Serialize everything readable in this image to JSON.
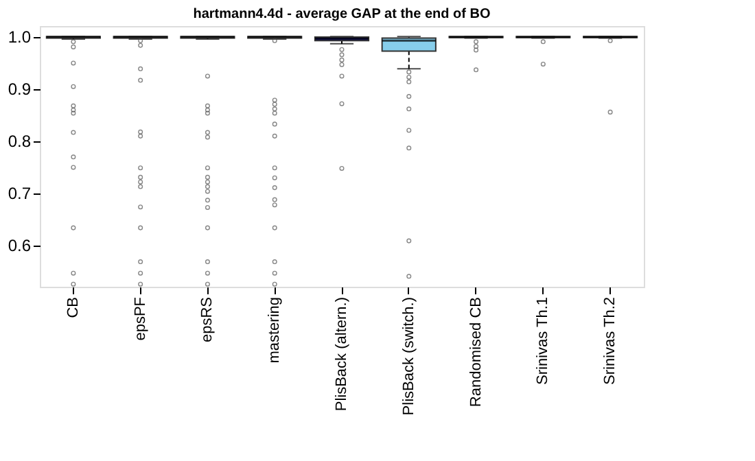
{
  "chart_data": {
    "type": "box",
    "title": "hartmann4.4d - average GAP at the end of BO",
    "categories": [
      "CB",
      "epsPF",
      "epsRS",
      "mastering",
      "PlisBack (altern.)",
      "PlisBack (switch.)",
      "Randomised CB",
      "Srinivas Th.1",
      "Srinivas Th.2"
    ],
    "colors": [
      "#ffffff",
      "#ffffff",
      "#ffffff",
      "#ffffff",
      "#191970",
      "#87ceeb",
      "#ffffff",
      "#ffffff",
      "#ffffff"
    ],
    "boxes": [
      {
        "low": 0.995,
        "q1": 0.997,
        "median": 0.999,
        "q3": 1.0,
        "high": 1.0,
        "outliers": [
          0.99,
          0.98,
          0.949,
          0.904,
          0.867,
          0.859,
          0.853,
          0.816,
          0.769,
          0.749,
          0.633,
          0.546,
          0.525
        ]
      },
      {
        "low": 0.995,
        "q1": 0.997,
        "median": 0.999,
        "q3": 1.0,
        "high": 1.0,
        "outliers": [
          0.992,
          0.983,
          0.938,
          0.916,
          0.817,
          0.809,
          0.748,
          0.73,
          0.721,
          0.712,
          0.673,
          0.633,
          0.568,
          0.546,
          0.525
        ]
      },
      {
        "low": 0.995,
        "q1": 0.997,
        "median": 0.999,
        "q3": 1.0,
        "high": 1.0,
        "outliers": [
          0.924,
          0.867,
          0.859,
          0.853,
          0.816,
          0.807,
          0.748,
          0.73,
          0.721,
          0.712,
          0.703,
          0.686,
          0.672,
          0.633,
          0.568,
          0.546,
          0.525
        ]
      },
      {
        "low": 0.995,
        "q1": 0.997,
        "median": 0.999,
        "q3": 1.0,
        "high": 1.0,
        "outliers": [
          0.992,
          0.878,
          0.87,
          0.861,
          0.853,
          0.832,
          0.809,
          0.748,
          0.729,
          0.71,
          0.687,
          0.677,
          0.633,
          0.568,
          0.546,
          0.525
        ]
      },
      {
        "low": 0.986,
        "q1": 0.992,
        "median": 0.996,
        "q3": 0.999,
        "high": 1.0,
        "outliers": [
          0.975,
          0.965,
          0.955,
          0.946,
          0.924,
          0.871,
          0.747
        ]
      },
      {
        "low": 0.938,
        "q1": 0.972,
        "median": 0.992,
        "q3": 0.997,
        "high": 1.0,
        "outliers": [
          0.932,
          0.922,
          0.913,
          0.885,
          0.861,
          0.82,
          0.786,
          0.608,
          0.54
        ]
      },
      {
        "low": 0.997,
        "q1": 0.998,
        "median": 0.999,
        "q3": 1.0,
        "high": 1.0,
        "outliers": [
          0.99,
          0.981,
          0.974,
          0.936
        ]
      },
      {
        "low": 0.997,
        "q1": 0.998,
        "median": 0.999,
        "q3": 1.0,
        "high": 1.0,
        "outliers": [
          0.99,
          0.947
        ]
      },
      {
        "low": 0.997,
        "q1": 0.998,
        "median": 0.999,
        "q3": 1.0,
        "high": 1.0,
        "outliers": [
          0.992,
          0.855
        ]
      }
    ],
    "ylim": [
      0.52,
      1.02
    ],
    "yticks": [
      0.6,
      0.7,
      0.8,
      0.9,
      {
        "value": 1,
        "label": "1.0"
      }
    ],
    "grid": false
  }
}
